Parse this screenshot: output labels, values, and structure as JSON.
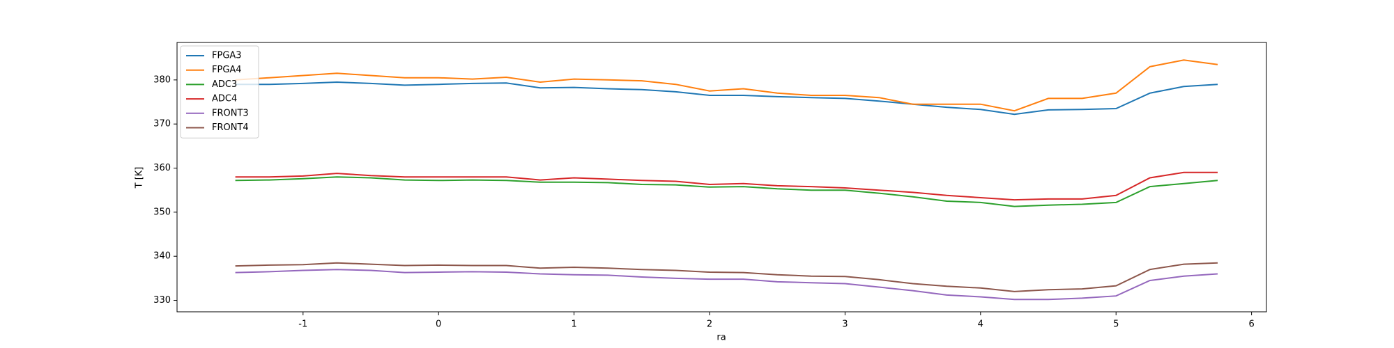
{
  "chart_data": {
    "type": "line",
    "xlabel": "ra",
    "ylabel": "T [K]",
    "x": [
      -1.5,
      -1.25,
      -1,
      -0.75,
      -0.5,
      -0.25,
      0,
      0.25,
      0.5,
      0.75,
      1,
      1.25,
      1.5,
      1.75,
      2,
      2.25,
      2.5,
      2.75,
      3,
      3.25,
      3.5,
      3.75,
      4,
      4.25,
      4.5,
      4.75,
      5,
      5.25,
      5.5,
      5.75
    ],
    "series": [
      {
        "name": "FPGA3",
        "color": "#1f77b4",
        "values": [
          379,
          379,
          379.2,
          379.5,
          379.2,
          378.8,
          379,
          379.2,
          379.3,
          378.2,
          378.3,
          378,
          377.8,
          377.3,
          376.5,
          376.5,
          376.2,
          376,
          375.8,
          375.2,
          374.5,
          373.8,
          373.3,
          372.2,
          373.2,
          373.3,
          373.5,
          377,
          378.5,
          379
        ]
      },
      {
        "name": "FPGA4",
        "color": "#ff7f0e",
        "values": [
          380,
          380.5,
          381,
          381.5,
          381,
          380.5,
          380.5,
          380.2,
          380.6,
          379.5,
          380.2,
          380,
          379.8,
          379,
          377.5,
          378,
          377,
          376.5,
          376.5,
          376,
          374.5,
          374.5,
          374.5,
          373,
          375.8,
          375.8,
          377,
          383,
          384.5,
          383.5
        ]
      },
      {
        "name": "ADC3",
        "color": "#2ca02c",
        "values": [
          357.2,
          357.3,
          357.6,
          358,
          357.8,
          357.3,
          357.2,
          357.3,
          357.2,
          356.8,
          356.8,
          356.7,
          356.3,
          356.2,
          355.7,
          355.8,
          355.3,
          355,
          355,
          354.3,
          353.5,
          352.5,
          352.2,
          351.3,
          351.6,
          351.8,
          352.2,
          355.8,
          356.5,
          357.2
        ]
      },
      {
        "name": "ADC4",
        "color": "#d62728",
        "values": [
          358,
          358,
          358.2,
          358.8,
          358.3,
          358,
          358,
          358,
          358,
          357.3,
          357.8,
          357.5,
          357.2,
          357,
          356.3,
          356.5,
          356,
          355.8,
          355.5,
          355,
          354.5,
          353.8,
          353.3,
          352.8,
          353,
          353,
          353.8,
          357.8,
          359,
          359
        ]
      },
      {
        "name": "FRONT3",
        "color": "#9467bd",
        "values": [
          336.3,
          336.5,
          336.8,
          337,
          336.8,
          336.3,
          336.4,
          336.5,
          336.4,
          336,
          335.8,
          335.7,
          335.3,
          335,
          334.8,
          334.8,
          334.2,
          334,
          333.8,
          333,
          332.2,
          331.2,
          330.8,
          330.2,
          330.2,
          330.5,
          331,
          334.5,
          335.5,
          336
        ]
      },
      {
        "name": "FRONT4",
        "color": "#8c564b",
        "values": [
          337.8,
          338,
          338.1,
          338.5,
          338.2,
          337.9,
          338,
          337.9,
          337.9,
          337.3,
          337.5,
          337.3,
          337,
          336.8,
          336.4,
          336.3,
          335.8,
          335.5,
          335.4,
          334.7,
          333.8,
          333.2,
          332.8,
          332,
          332.4,
          332.6,
          333.3,
          337,
          338.2,
          338.5
        ]
      }
    ],
    "xlim": [
      -1.93,
      6.11
    ],
    "xticks": [
      -1,
      0,
      1,
      2,
      3,
      4,
      5,
      6
    ],
    "ylim": [
      327.4,
      388.5
    ],
    "yticks": [
      330,
      340,
      350,
      360,
      370,
      380
    ],
    "grid": false,
    "legend": "upper left"
  }
}
